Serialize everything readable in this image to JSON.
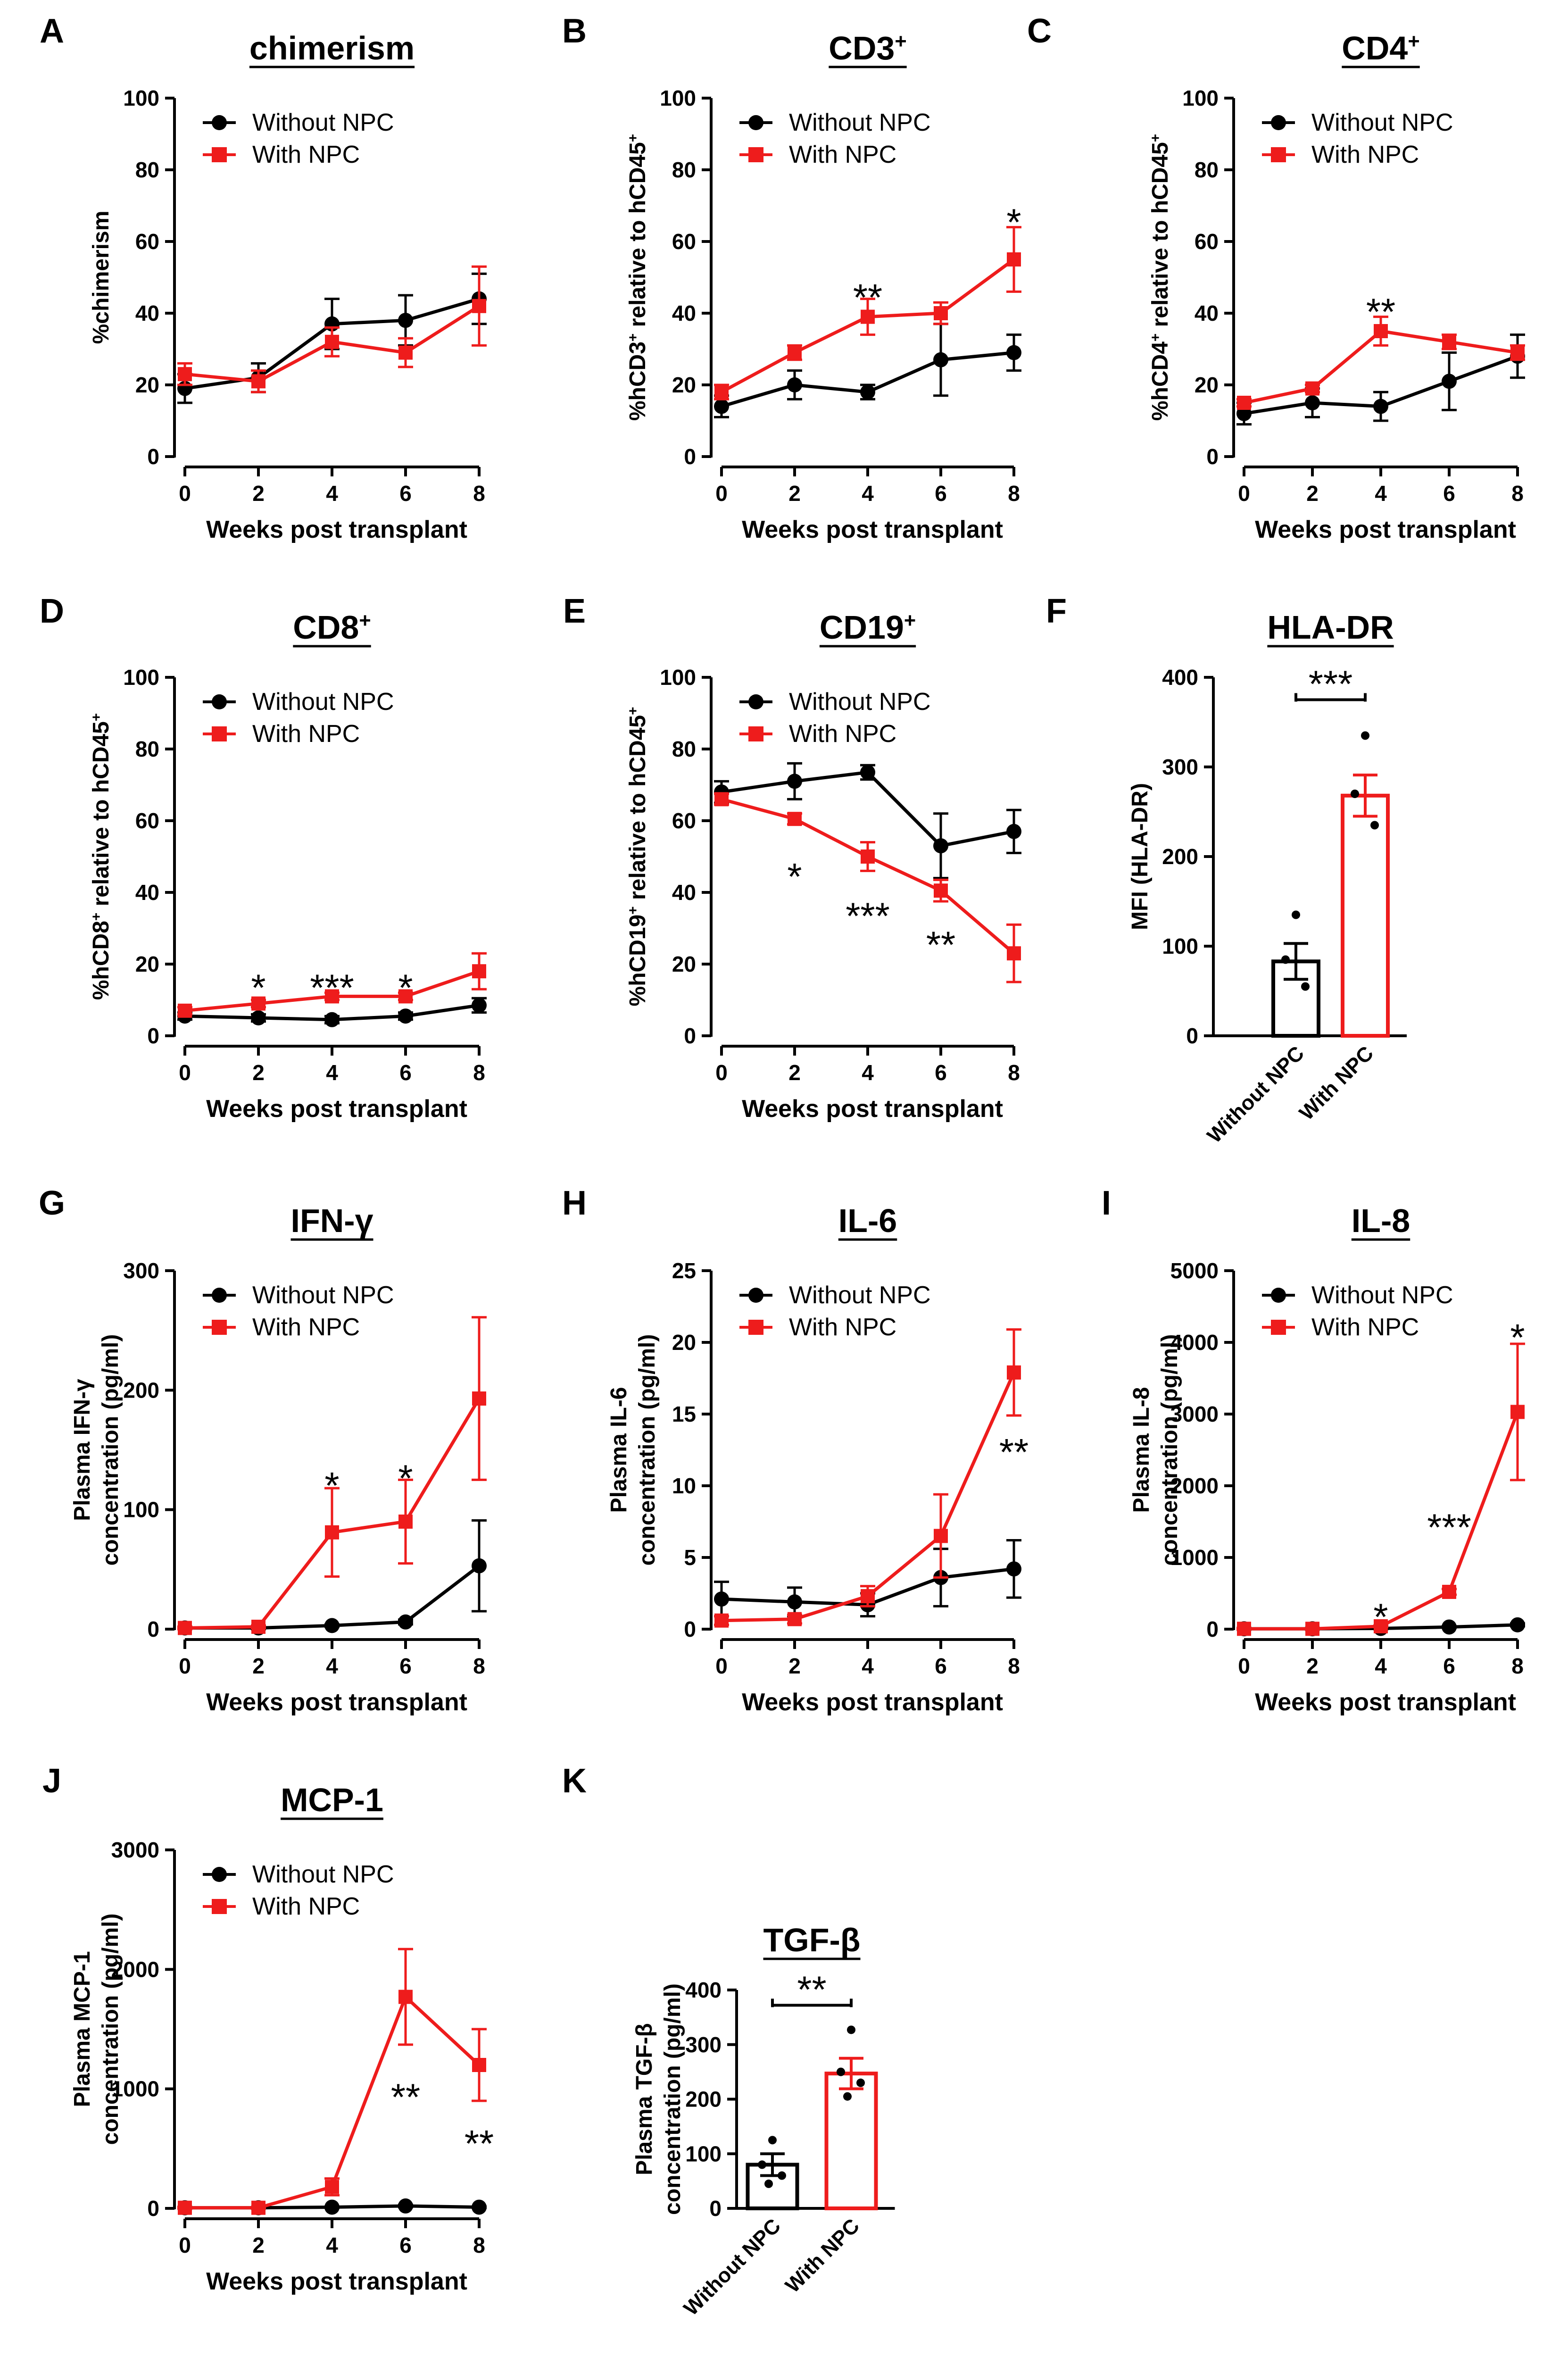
{
  "figure": {
    "legend": {
      "without": "Without NPC",
      "with": "With NPC"
    },
    "colors": {
      "without": "#000000",
      "with": "#ee1c1c"
    }
  },
  "chart_data": [
    {
      "id": "A",
      "letter": "A",
      "type": "line",
      "title": "chimerism",
      "title_parts": [
        {
          "t": "chimerism"
        }
      ],
      "ylabel_lines": [
        [
          {
            "t": "%chimerism"
          }
        ]
      ],
      "xlabel": "Weeks post transplant",
      "x": [
        0,
        2,
        4,
        6,
        8
      ],
      "xlim": [
        0,
        8
      ],
      "ylim": [
        0,
        100
      ],
      "yticks": [
        0,
        20,
        40,
        60,
        80,
        100
      ],
      "series": [
        {
          "name": "Without NPC",
          "values": [
            19,
            22,
            37,
            38,
            44
          ],
          "err": [
            4,
            4,
            7,
            7,
            7
          ]
        },
        {
          "name": "With NPC",
          "values": [
            23,
            21,
            32,
            29,
            42
          ],
          "err": [
            3,
            3,
            4,
            4,
            11
          ]
        }
      ],
      "annotations": []
    },
    {
      "id": "B",
      "letter": "B",
      "type": "line",
      "title": "CD3+",
      "title_parts": [
        {
          "t": "CD3"
        },
        {
          "t": "+",
          "sup": true
        }
      ],
      "ylabel_lines": [
        [
          {
            "t": "%hCD3"
          },
          {
            "t": "+",
            "sup": true
          },
          {
            "t": " relative to hCD45"
          },
          {
            "t": "+",
            "sup": true
          }
        ]
      ],
      "xlabel": "Weeks post transplant",
      "x": [
        0,
        2,
        4,
        6,
        8
      ],
      "xlim": [
        0,
        8
      ],
      "ylim": [
        0,
        100
      ],
      "yticks": [
        0,
        20,
        40,
        60,
        80,
        100
      ],
      "series": [
        {
          "name": "Without NPC",
          "values": [
            14,
            20,
            18,
            27,
            29
          ],
          "err": [
            3,
            4,
            2,
            10,
            5
          ]
        },
        {
          "name": "With NPC",
          "values": [
            18,
            29,
            39,
            40,
            55
          ],
          "err": [
            2,
            2,
            5,
            3,
            9
          ]
        }
      ],
      "annotations": [
        {
          "x": 4,
          "y": 45,
          "text": "**"
        },
        {
          "x": 8,
          "y": 66,
          "text": "*"
        }
      ]
    },
    {
      "id": "C",
      "letter": "C",
      "type": "line",
      "title": "CD4+",
      "title_parts": [
        {
          "t": "CD4"
        },
        {
          "t": "+",
          "sup": true
        }
      ],
      "ylabel_lines": [
        [
          {
            "t": "%hCD4"
          },
          {
            "t": "+",
            "sup": true
          },
          {
            "t": " relative to hCD45"
          },
          {
            "t": "+",
            "sup": true
          }
        ]
      ],
      "xlabel": "Weeks post transplant",
      "x": [
        0,
        2,
        4,
        6,
        8
      ],
      "xlim": [
        0,
        8
      ],
      "ylim": [
        0,
        100
      ],
      "yticks": [
        0,
        20,
        40,
        60,
        80,
        100
      ],
      "series": [
        {
          "name": "Without NPC",
          "values": [
            12,
            15,
            14,
            21,
            28
          ],
          "err": [
            3,
            4,
            4,
            8,
            6
          ]
        },
        {
          "name": "With NPC",
          "values": [
            15,
            19,
            35,
            32,
            29
          ],
          "err": [
            1,
            1,
            4,
            2,
            2
          ]
        }
      ],
      "annotations": [
        {
          "x": 4,
          "y": 41,
          "text": "**"
        }
      ]
    },
    {
      "id": "D",
      "letter": "D",
      "type": "line",
      "title": "CD8+",
      "title_parts": [
        {
          "t": "CD8"
        },
        {
          "t": "+",
          "sup": true
        }
      ],
      "ylabel_lines": [
        [
          {
            "t": "%hCD8"
          },
          {
            "t": "+",
            "sup": true
          },
          {
            "t": " relative to hCD45"
          },
          {
            "t": "+",
            "sup": true
          }
        ]
      ],
      "xlabel": "Weeks post transplant",
      "x": [
        0,
        2,
        4,
        6,
        8
      ],
      "xlim": [
        0,
        8
      ],
      "ylim": [
        0,
        100
      ],
      "yticks": [
        0,
        20,
        40,
        60,
        80,
        100
      ],
      "series": [
        {
          "name": "Without NPC",
          "values": [
            5.5,
            5,
            4.5,
            5.5,
            8.5
          ],
          "err": [
            1,
            1,
            1,
            1,
            2
          ]
        },
        {
          "name": "With NPC",
          "values": [
            7,
            9,
            11,
            11,
            18
          ],
          "err": [
            1,
            1,
            1,
            1,
            5
          ]
        }
      ],
      "annotations": [
        {
          "x": 2,
          "y": 14,
          "text": "*"
        },
        {
          "x": 4,
          "y": 14,
          "text": "***"
        },
        {
          "x": 6,
          "y": 14,
          "text": "*"
        }
      ]
    },
    {
      "id": "E",
      "letter": "E",
      "type": "line",
      "title": "CD19+",
      "title_parts": [
        {
          "t": "CD19"
        },
        {
          "t": "+",
          "sup": true
        }
      ],
      "ylabel_lines": [
        [
          {
            "t": "%hCD19"
          },
          {
            "t": "+",
            "sup": true
          },
          {
            "t": " relative to hCD45"
          },
          {
            "t": "+",
            "sup": true
          }
        ]
      ],
      "xlabel": "Weeks post transplant",
      "x": [
        0,
        2,
        4,
        6,
        8
      ],
      "xlim": [
        0,
        8
      ],
      "ylim": [
        0,
        100
      ],
      "yticks": [
        0,
        20,
        40,
        60,
        80,
        100
      ],
      "series": [
        {
          "name": "Without NPC",
          "values": [
            68,
            71,
            73.5,
            53,
            57
          ],
          "err": [
            3,
            5,
            2,
            9,
            6
          ]
        },
        {
          "name": "With NPC",
          "values": [
            66,
            60.5,
            50,
            40.5,
            23
          ],
          "err": [
            1.5,
            1.5,
            4,
            3,
            8
          ]
        }
      ],
      "annotations": [
        {
          "x": 2,
          "y": 45,
          "text": "*"
        },
        {
          "x": 4,
          "y": 34,
          "text": "***"
        },
        {
          "x": 6,
          "y": 26,
          "text": "**"
        }
      ]
    },
    {
      "id": "F",
      "letter": "F",
      "type": "bar",
      "title": "HLA-DR",
      "title_parts": [
        {
          "t": "HLA-DR"
        }
      ],
      "ylabel_lines": [
        [
          {
            "t": "MFI (HLA-DR)"
          }
        ]
      ],
      "categories": [
        "Without NPC",
        "With NPC"
      ],
      "values": [
        83,
        268
      ],
      "err": [
        20,
        23
      ],
      "points": [
        [
          135,
          85,
          55
        ],
        [
          335,
          270,
          235
        ]
      ],
      "ylim": [
        0,
        400
      ],
      "yticks": [
        0,
        100,
        200,
        300,
        400
      ],
      "significance": {
        "text": "***",
        "y": 375
      }
    },
    {
      "id": "G",
      "letter": "G",
      "type": "line",
      "title": "IFN-γ",
      "title_parts": [
        {
          "t": "IFN-γ"
        }
      ],
      "ylabel_lines": [
        [
          {
            "t": "Plasma IFN-γ"
          }
        ],
        [
          {
            "t": "concentration (pg/ml)"
          }
        ]
      ],
      "xlabel": "Weeks post transplant",
      "x": [
        0,
        2,
        4,
        6,
        8
      ],
      "xlim": [
        0,
        8
      ],
      "ylim": [
        0,
        300
      ],
      "yticks": [
        0,
        100,
        200,
        300
      ],
      "series": [
        {
          "name": "Without NPC",
          "values": [
            1,
            1,
            3,
            6,
            53
          ],
          "err": [
            1,
            1,
            1,
            2,
            38
          ]
        },
        {
          "name": "With NPC",
          "values": [
            1,
            2,
            81,
            90,
            193
          ],
          "err": [
            1,
            1,
            37,
            35,
            68
          ]
        }
      ],
      "annotations": [
        {
          "x": 4,
          "y": 122,
          "text": "*"
        },
        {
          "x": 6,
          "y": 128,
          "text": "*"
        }
      ]
    },
    {
      "id": "H",
      "letter": "H",
      "type": "line",
      "title": "IL-6",
      "title_parts": [
        {
          "t": "IL-6"
        }
      ],
      "ylabel_lines": [
        [
          {
            "t": "Plasma IL-6"
          }
        ],
        [
          {
            "t": "concentration (pg/ml)"
          }
        ]
      ],
      "xlabel": "Weeks post transplant",
      "x": [
        0,
        2,
        4,
        6,
        8
      ],
      "xlim": [
        0,
        8
      ],
      "ylim": [
        0,
        25
      ],
      "yticks": [
        0,
        5,
        10,
        15,
        20,
        25
      ],
      "series": [
        {
          "name": "Without NPC",
          "values": [
            2.1,
            1.9,
            1.7,
            3.6,
            4.2
          ],
          "err": [
            1.2,
            1,
            0.8,
            2,
            2
          ]
        },
        {
          "name": "With NPC",
          "values": [
            0.6,
            0.7,
            2.3,
            6.5,
            17.9
          ],
          "err": [
            0.3,
            0.3,
            0.7,
            2.9,
            3
          ]
        }
      ],
      "annotations": [
        {
          "x": 8,
          "y": 12.5,
          "text": "**"
        }
      ]
    },
    {
      "id": "I",
      "letter": "I",
      "type": "line",
      "title": "IL-8",
      "title_parts": [
        {
          "t": "IL-8"
        }
      ],
      "ylabel_lines": [
        [
          {
            "t": "Plasma IL-8"
          }
        ],
        [
          {
            "t": "concentration (pg/ml)"
          }
        ]
      ],
      "xlabel": "Weeks post transplant",
      "x": [
        0,
        2,
        4,
        6,
        8
      ],
      "xlim": [
        0,
        8
      ],
      "ylim": [
        0,
        5000
      ],
      "yticks": [
        0,
        1000,
        2000,
        3000,
        4000,
        5000
      ],
      "series": [
        {
          "name": "Without NPC",
          "values": [
            5,
            5,
            10,
            30,
            60
          ],
          "err": [
            5,
            5,
            5,
            10,
            20
          ]
        },
        {
          "name": "With NPC",
          "values": [
            5,
            5,
            40,
            520,
            3030
          ],
          "err": [
            5,
            5,
            10,
            40,
            950
          ]
        }
      ],
      "annotations": [
        {
          "x": 4,
          "y": 200,
          "text": "*"
        },
        {
          "x": 6,
          "y": 1450,
          "text": "***"
        },
        {
          "x": 8,
          "y": 4100,
          "text": "*"
        }
      ]
    },
    {
      "id": "J",
      "letter": "J",
      "type": "line",
      "title": "MCP-1",
      "title_parts": [
        {
          "t": "MCP-1"
        }
      ],
      "ylabel_lines": [
        [
          {
            "t": "Plasma MCP-1"
          }
        ],
        [
          {
            "t": "concentration (pg/ml)"
          }
        ]
      ],
      "xlabel": "Weeks post transplant",
      "x": [
        0,
        2,
        4,
        6,
        8
      ],
      "xlim": [
        0,
        8
      ],
      "ylim": [
        0,
        3000
      ],
      "yticks": [
        0,
        1000,
        2000,
        3000
      ],
      "series": [
        {
          "name": "Without NPC",
          "values": [
            5,
            5,
            10,
            20,
            10
          ],
          "err": [
            5,
            5,
            5,
            10,
            5
          ]
        },
        {
          "name": "With NPC",
          "values": [
            5,
            5,
            180,
            1770,
            1200
          ],
          "err": [
            5,
            5,
            70,
            400,
            300
          ]
        }
      ],
      "annotations": [
        {
          "x": 6,
          "y": 950,
          "text": "**"
        },
        {
          "x": 8,
          "y": 560,
          "text": "**"
        }
      ]
    },
    {
      "id": "K",
      "letter": "K",
      "type": "bar",
      "title": "TGF-β",
      "title_parts": [
        {
          "t": "TGF-β"
        }
      ],
      "ylabel_lines": [
        [
          {
            "t": "Plasma TGF-β"
          }
        ],
        [
          {
            "t": "concentration (pg/ml)"
          }
        ]
      ],
      "categories": [
        "Without NPC",
        "With NPC"
      ],
      "values": [
        80,
        247
      ],
      "err": [
        20,
        28
      ],
      "points": [
        [
          125,
          80,
          60,
          45
        ],
        [
          327,
          250,
          230,
          205
        ]
      ],
      "ylim": [
        0,
        400
      ],
      "yticks": [
        0,
        100,
        200,
        300,
        400
      ],
      "significance": {
        "text": "**",
        "y": 372
      }
    }
  ]
}
